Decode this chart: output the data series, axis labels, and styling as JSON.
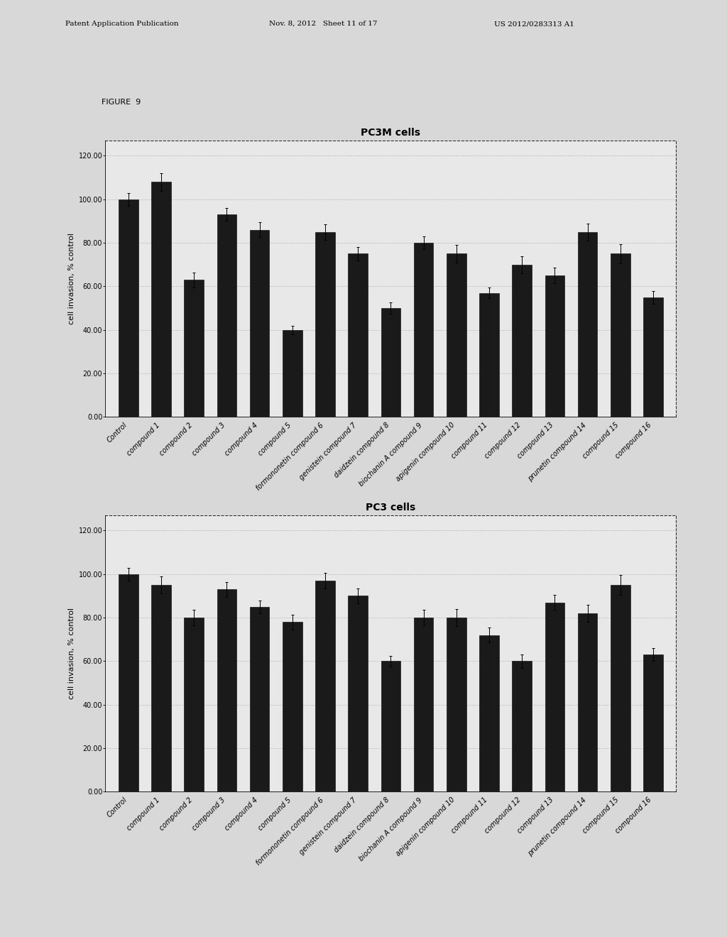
{
  "figure9_label": "FIGURE  9",
  "header_left": "Patent Application Publication",
  "header_mid": "Nov. 8, 2012   Sheet 11 of 17",
  "header_right": "US 2012/0283313 A1",
  "top_chart": {
    "title": "PC3M cells",
    "ylabel": "cell invasion, % control",
    "yticks": [
      0.0,
      20.0,
      40.0,
      60.0,
      80.0,
      100.0,
      120.0
    ],
    "ylim": [
      0,
      127
    ],
    "categories": [
      "Control",
      "compound 1",
      "compound 2",
      "compound 3",
      "compound 4",
      "compound 5",
      "formononetin compound 6",
      "genistein compound 7",
      "daidzein compound 8",
      "biochanin A compound 9",
      "apigenin compound 10",
      "compound 11",
      "compound 12",
      "compound 13",
      "prunetin compound 14",
      "compound 15",
      "compound 16"
    ],
    "values": [
      100.0,
      108.0,
      63.0,
      93.0,
      86.0,
      40.0,
      85.0,
      75.0,
      50.0,
      80.0,
      75.0,
      57.0,
      70.0,
      65.0,
      85.0,
      75.0,
      55.0
    ],
    "errors": [
      3.0,
      4.0,
      3.5,
      3.0,
      3.5,
      2.0,
      3.5,
      3.0,
      2.5,
      3.0,
      4.0,
      2.5,
      4.0,
      3.5,
      4.0,
      4.5,
      3.0
    ]
  },
  "bottom_chart": {
    "title": "PC3 cells",
    "ylabel": "cell invasion, % control",
    "yticks": [
      0.0,
      20.0,
      40.0,
      60.0,
      80.0,
      100.0,
      120.0
    ],
    "ylim": [
      0,
      127
    ],
    "categories": [
      "Control",
      "compound 1",
      "compound 2",
      "compound 3",
      "compound 4",
      "compound 5",
      "formononetin compound 6",
      "genistein compound 7",
      "daidzein compound 8",
      "biochanin A compound 9",
      "apigenin compound 10",
      "compound 11",
      "compound 12",
      "compound 13",
      "prunetin compound 14",
      "compound 15",
      "compound 16"
    ],
    "values": [
      100.0,
      95.0,
      80.0,
      93.0,
      85.0,
      78.0,
      97.0,
      90.0,
      60.0,
      80.0,
      80.0,
      72.0,
      60.0,
      87.0,
      82.0,
      95.0,
      63.0
    ],
    "errors": [
      3.0,
      4.0,
      3.5,
      3.5,
      3.0,
      3.5,
      3.5,
      3.5,
      2.5,
      3.5,
      4.0,
      3.5,
      3.0,
      3.5,
      4.0,
      4.5,
      3.0
    ]
  },
  "bar_color": "#1a1a1a",
  "bar_width": 0.6,
  "background_color": "#d8d8d8",
  "plot_bg_color": "#e8e8e8",
  "grid_color": "#999999",
  "font_size_title": 10,
  "font_size_label": 8,
  "font_size_tick": 7,
  "font_size_ytick": 7,
  "font_size_header": 7.5,
  "font_size_figure": 8
}
